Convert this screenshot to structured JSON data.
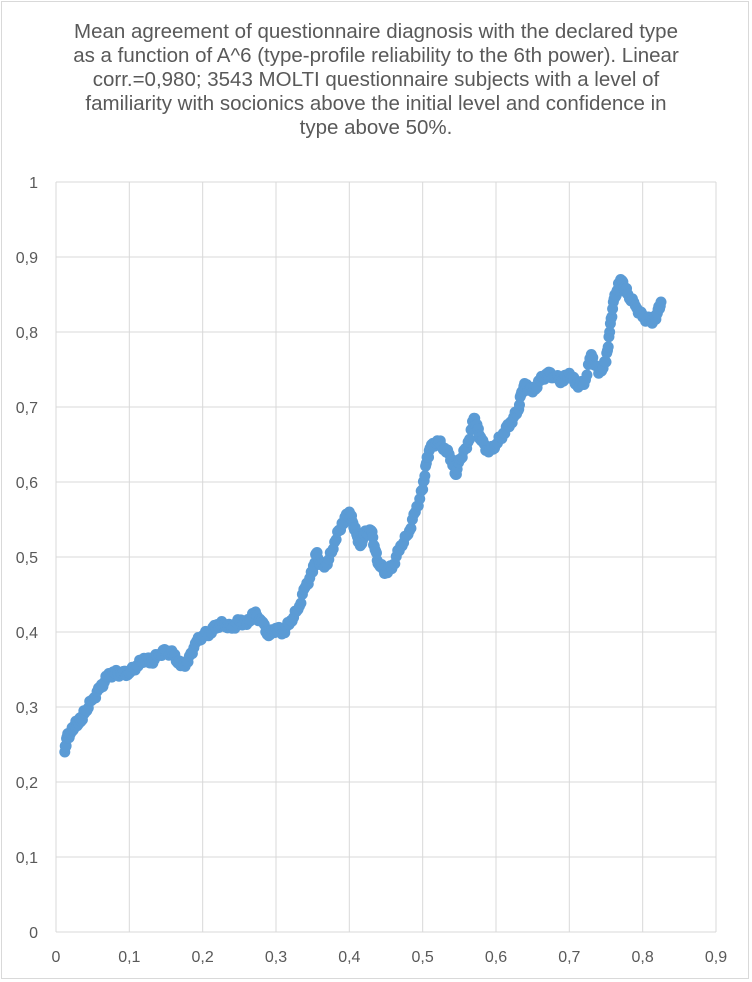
{
  "chart_data": {
    "type": "scatter",
    "title": "Mean agreement of questionnaire diagnosis with the declared type\nas a function of A^6 (type-profile reliability to the 6th power). Linear\ncorr.=0,980; 3543 MOLTI questionnaire subjects with a level of\nfamiliarity with socionics above the initial level and confidence in\ntype above 50%.",
    "xlabel": "",
    "ylabel": "",
    "xlim": [
      0,
      0.9
    ],
    "ylim": [
      0,
      1
    ],
    "x_ticks": [
      "0",
      "0,1",
      "0,2",
      "0,3",
      "0,4",
      "0,5",
      "0,6",
      "0,7",
      "0,8",
      "0,9"
    ],
    "y_ticks": [
      "0",
      "0,1",
      "0,2",
      "0,3",
      "0,4",
      "0,5",
      "0,6",
      "0,7",
      "0,8",
      "0,9",
      "1"
    ],
    "grid": true,
    "legend": "none",
    "series": [
      {
        "color": "#5b9bd5",
        "points": [
          [
            0.012,
            0.24
          ],
          [
            0.015,
            0.26
          ],
          [
            0.02,
            0.265
          ],
          [
            0.025,
            0.275
          ],
          [
            0.03,
            0.28
          ],
          [
            0.035,
            0.285
          ],
          [
            0.04,
            0.295
          ],
          [
            0.05,
            0.31
          ],
          [
            0.06,
            0.325
          ],
          [
            0.07,
            0.34
          ],
          [
            0.08,
            0.345
          ],
          [
            0.09,
            0.345
          ],
          [
            0.1,
            0.345
          ],
          [
            0.11,
            0.355
          ],
          [
            0.12,
            0.365
          ],
          [
            0.13,
            0.36
          ],
          [
            0.14,
            0.37
          ],
          [
            0.15,
            0.375
          ],
          [
            0.16,
            0.37
          ],
          [
            0.17,
            0.355
          ],
          [
            0.18,
            0.36
          ],
          [
            0.19,
            0.385
          ],
          [
            0.2,
            0.395
          ],
          [
            0.21,
            0.4
          ],
          [
            0.22,
            0.41
          ],
          [
            0.23,
            0.41
          ],
          [
            0.24,
            0.405
          ],
          [
            0.25,
            0.415
          ],
          [
            0.26,
            0.41
          ],
          [
            0.27,
            0.425
          ],
          [
            0.28,
            0.415
          ],
          [
            0.29,
            0.395
          ],
          [
            0.3,
            0.405
          ],
          [
            0.31,
            0.4
          ],
          [
            0.32,
            0.415
          ],
          [
            0.33,
            0.43
          ],
          [
            0.34,
            0.46
          ],
          [
            0.35,
            0.48
          ],
          [
            0.355,
            0.505
          ],
          [
            0.36,
            0.49
          ],
          [
            0.37,
            0.49
          ],
          [
            0.38,
            0.52
          ],
          [
            0.39,
            0.545
          ],
          [
            0.4,
            0.56
          ],
          [
            0.405,
            0.545
          ],
          [
            0.41,
            0.53
          ],
          [
            0.415,
            0.515
          ],
          [
            0.42,
            0.53
          ],
          [
            0.43,
            0.535
          ],
          [
            0.435,
            0.51
          ],
          [
            0.44,
            0.49
          ],
          [
            0.45,
            0.48
          ],
          [
            0.46,
            0.49
          ],
          [
            0.47,
            0.515
          ],
          [
            0.48,
            0.53
          ],
          [
            0.49,
            0.56
          ],
          [
            0.5,
            0.59
          ],
          [
            0.505,
            0.625
          ],
          [
            0.51,
            0.645
          ],
          [
            0.52,
            0.655
          ],
          [
            0.53,
            0.645
          ],
          [
            0.54,
            0.63
          ],
          [
            0.545,
            0.61
          ],
          [
            0.55,
            0.63
          ],
          [
            0.56,
            0.645
          ],
          [
            0.57,
            0.685
          ],
          [
            0.575,
            0.67
          ],
          [
            0.58,
            0.655
          ],
          [
            0.59,
            0.64
          ],
          [
            0.6,
            0.65
          ],
          [
            0.61,
            0.665
          ],
          [
            0.62,
            0.68
          ],
          [
            0.63,
            0.695
          ],
          [
            0.635,
            0.72
          ],
          [
            0.64,
            0.73
          ],
          [
            0.65,
            0.72
          ],
          [
            0.66,
            0.735
          ],
          [
            0.67,
            0.745
          ],
          [
            0.68,
            0.74
          ],
          [
            0.69,
            0.735
          ],
          [
            0.7,
            0.745
          ],
          [
            0.71,
            0.73
          ],
          [
            0.72,
            0.73
          ],
          [
            0.73,
            0.77
          ],
          [
            0.74,
            0.745
          ],
          [
            0.75,
            0.76
          ],
          [
            0.755,
            0.8
          ],
          [
            0.76,
            0.84
          ],
          [
            0.765,
            0.855
          ],
          [
            0.77,
            0.87
          ],
          [
            0.775,
            0.86
          ],
          [
            0.78,
            0.85
          ],
          [
            0.79,
            0.835
          ],
          [
            0.8,
            0.82
          ],
          [
            0.81,
            0.815
          ],
          [
            0.815,
            0.815
          ],
          [
            0.82,
            0.825
          ],
          [
            0.825,
            0.84
          ]
        ]
      }
    ]
  }
}
